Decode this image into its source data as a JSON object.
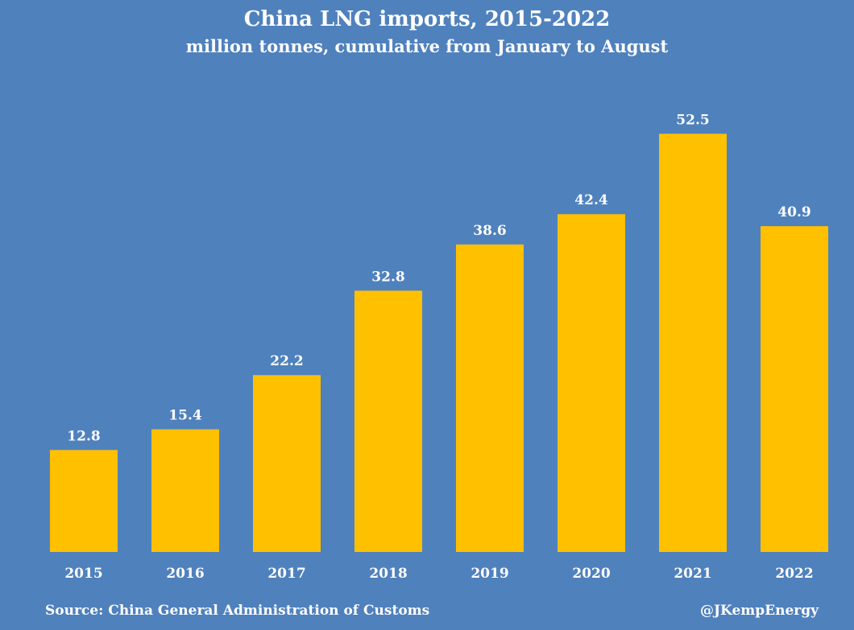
{
  "colors": {
    "background": "#4f81bd",
    "bar": "#ffc000",
    "text": "#ffffff"
  },
  "chart_data": {
    "type": "bar",
    "title": "China LNG imports, 2015-2022",
    "subtitle": "million tonnes, cumulative from January to August",
    "categories": [
      "2015",
      "2016",
      "2017",
      "2018",
      "2019",
      "2020",
      "2021",
      "2022"
    ],
    "values": [
      12.8,
      15.4,
      22.2,
      32.8,
      38.6,
      42.4,
      52.5,
      40.9
    ],
    "data_labels": [
      "12.8",
      "15.4",
      "22.2",
      "32.8",
      "38.6",
      "42.4",
      "52.5",
      "40.9"
    ],
    "ylim": [
      0,
      60
    ],
    "grid": false,
    "legend": "none"
  },
  "footer": {
    "source": "Source: China General Administration of Customs",
    "handle": "@JKempEnergy"
  }
}
